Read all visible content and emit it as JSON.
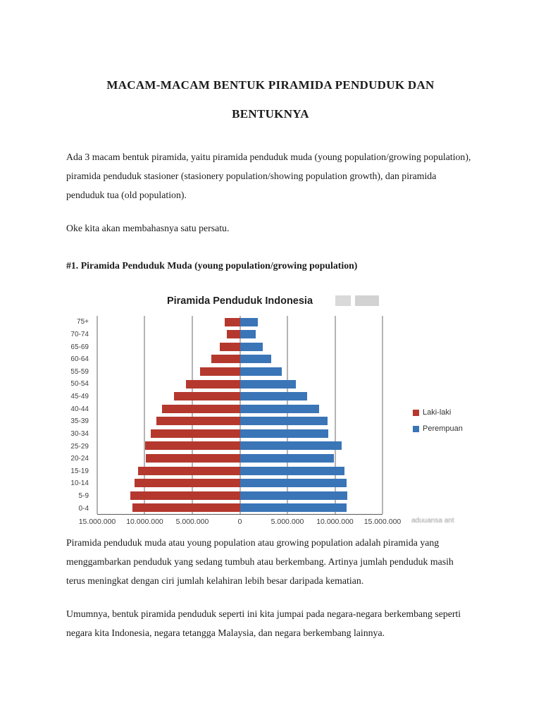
{
  "page": {
    "title_line1": "MACAM-MACAM BENTUK PIRAMIDA PENDUDUK DAN",
    "title_line2": "BENTUKNYA",
    "para1": "Ada 3 macam bentuk piramida, yaitu piramida penduduk muda (young population/growing population), piramida penduduk stasioner (stasionery population/showing population growth), dan piramida penduduk tua (old population).",
    "para2": "Oke kita akan membahasnya satu persatu.",
    "heading1": "#1. Piramida Penduduk Muda (young population/growing population)",
    "para3": "Piramida penduduk muda atau young population atau growing population adalah piramida yang menggambarkan penduduk yang sedang tumbuh atau berkembang. Artinya jumlah penduduk masih terus meningkat dengan ciri jumlah kelahiran lebih besar daripada kematian.",
    "para4": "Umumnya, bentuk piramida penduduk seperti ini kita jumpai pada negara-negara berkembang seperti negara kita Indonesia, negara tetangga Malaysia, dan negara berkembang lainnya."
  },
  "chart_data": {
    "type": "bar",
    "subtype": "population-pyramid",
    "title": "Piramida Penduduk Indonesia",
    "categories": [
      "75+",
      "70-74",
      "65-69",
      "60-64",
      "55-59",
      "50-54",
      "45-49",
      "40-44",
      "35-39",
      "30-34",
      "25-29",
      "20-24",
      "15-19",
      "10-14",
      "5-9",
      "0-4"
    ],
    "series": [
      {
        "name": "Laki-laki",
        "side": "left",
        "color": "#b5382e",
        "values": [
          1600000,
          1400000,
          2100000,
          3000000,
          4200000,
          5700000,
          6900000,
          8200000,
          8800000,
          9400000,
          10000000,
          9900000,
          10700000,
          11100000,
          11500000,
          11300000
        ]
      },
      {
        "name": "Perempuan",
        "side": "right",
        "color": "#3a75b7",
        "values": [
          1900000,
          1700000,
          2400000,
          3300000,
          4400000,
          5900000,
          7100000,
          8300000,
          9200000,
          9300000,
          10700000,
          9900000,
          11000000,
          11200000,
          11300000,
          11200000
        ]
      }
    ],
    "x_ticks": [
      "15.000.000",
      "10.000.000",
      "5.000.000",
      "0",
      "5.000.000",
      "10.000.000",
      "15.000.000"
    ],
    "x_max": 15000000,
    "x_range": [
      -15000000,
      15000000
    ],
    "tick_interval": 5000000,
    "grid": true,
    "legend_position": "right",
    "watermark_fragment": "aduuansa ant"
  }
}
